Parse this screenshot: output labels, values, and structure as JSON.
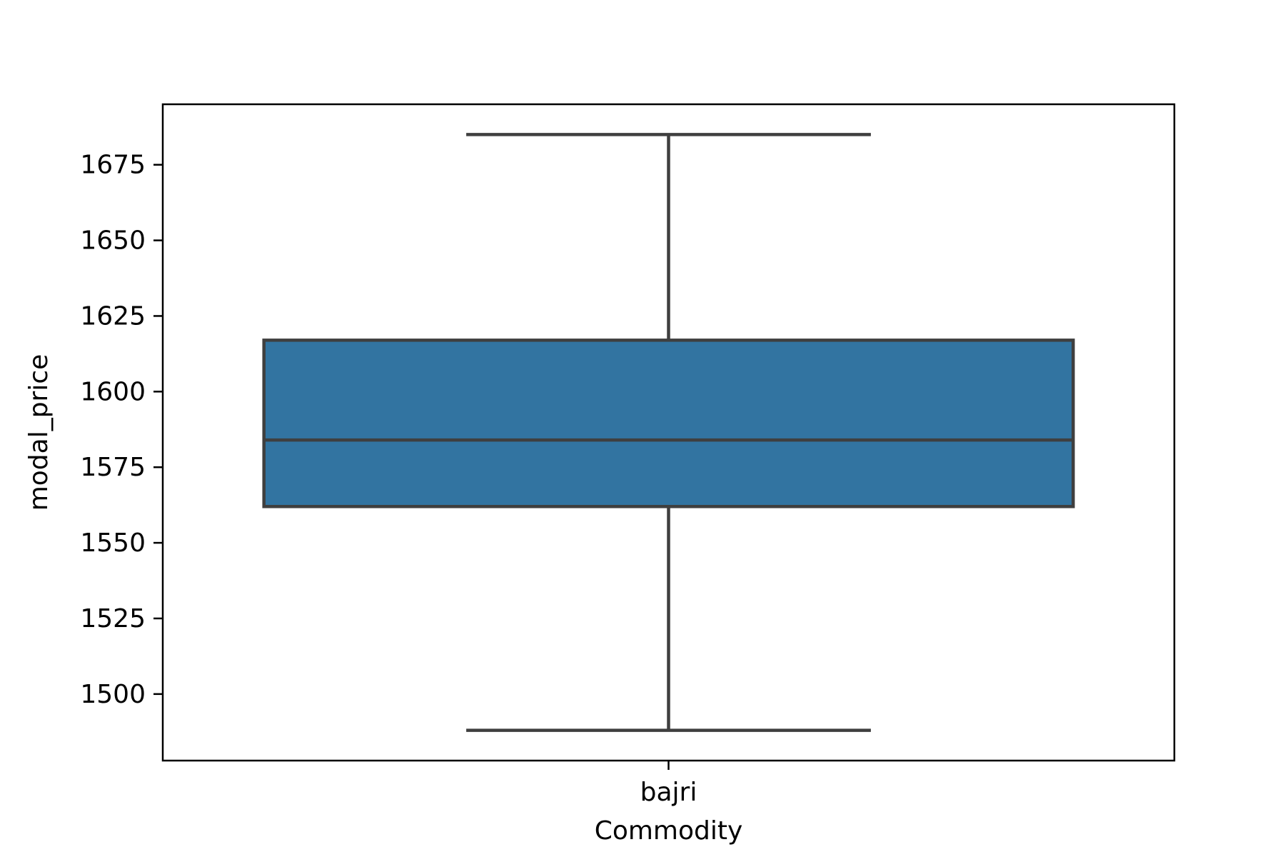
{
  "chart_data": {
    "type": "box",
    "title": "",
    "xlabel": "Commodity",
    "ylabel": "modal_price",
    "categories": [
      "bajri"
    ],
    "boxes": [
      {
        "category": "bajri",
        "whisker_low": 1488,
        "q1": 1562,
        "median": 1584,
        "q3": 1617,
        "whisker_high": 1685
      }
    ],
    "ylim": [
      1478,
      1695
    ],
    "yticks": [
      1500,
      1525,
      1550,
      1575,
      1600,
      1625,
      1650,
      1675
    ],
    "grid": false,
    "legend": "none",
    "colors": {
      "box_fill": "#3274a1",
      "box_edge": "#3f3f3f",
      "axes": "#000000"
    }
  }
}
